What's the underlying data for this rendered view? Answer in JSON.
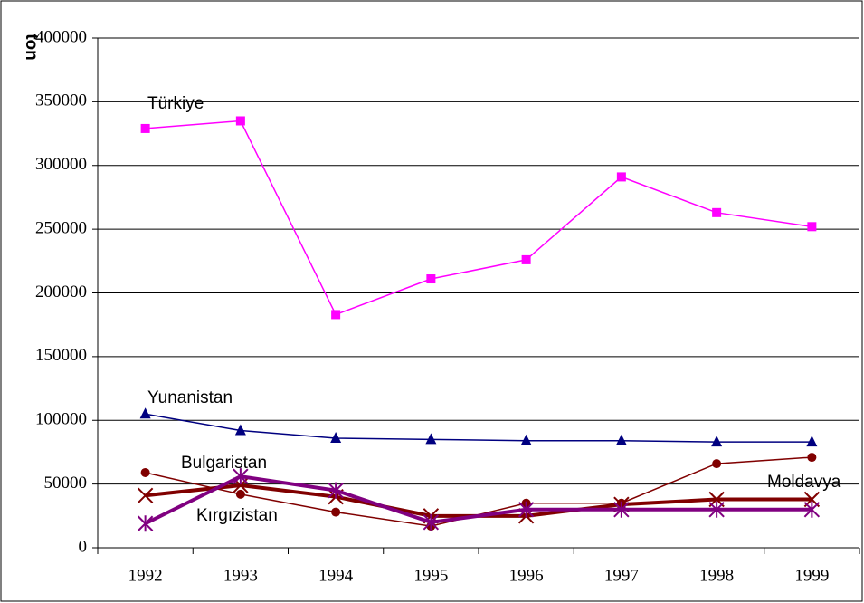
{
  "chart_data": {
    "type": "line",
    "y_label": "ton",
    "categories": [
      "1992",
      "1993",
      "1994",
      "1995",
      "1996",
      "1997",
      "1998",
      "1999"
    ],
    "ylim": [
      0,
      400000
    ],
    "yticks": [
      0,
      50000,
      100000,
      150000,
      200000,
      250000,
      300000,
      350000,
      400000
    ],
    "grid": true,
    "series": [
      {
        "name": "Türkiye",
        "color": "#ff00ff",
        "marker": "square",
        "width": 1.5,
        "values": [
          329000,
          335000,
          183000,
          211000,
          226000,
          291000,
          263000,
          252000
        ]
      },
      {
        "name": "Yunanistan",
        "color": "#000080",
        "marker": "triangle",
        "width": 1.5,
        "values": [
          105000,
          92000,
          86000,
          85000,
          84000,
          84000,
          83000,
          83000
        ]
      },
      {
        "name": "Bulgaristan",
        "color": "#800000",
        "marker": "circle",
        "width": 1.5,
        "values": [
          59000,
          42000,
          28000,
          17000,
          35000,
          35000,
          66000,
          71000
        ]
      },
      {
        "name": "Moldavya",
        "color": "#800000",
        "marker": "x",
        "width": 4,
        "values": [
          41000,
          49000,
          40000,
          25000,
          25000,
          34000,
          38000,
          38000
        ]
      },
      {
        "name": "Kırgızistan",
        "color": "#800080",
        "marker": "star",
        "width": 4,
        "values": [
          19000,
          56000,
          45000,
          20000,
          30000,
          30000,
          30000,
          30000
        ]
      }
    ]
  }
}
